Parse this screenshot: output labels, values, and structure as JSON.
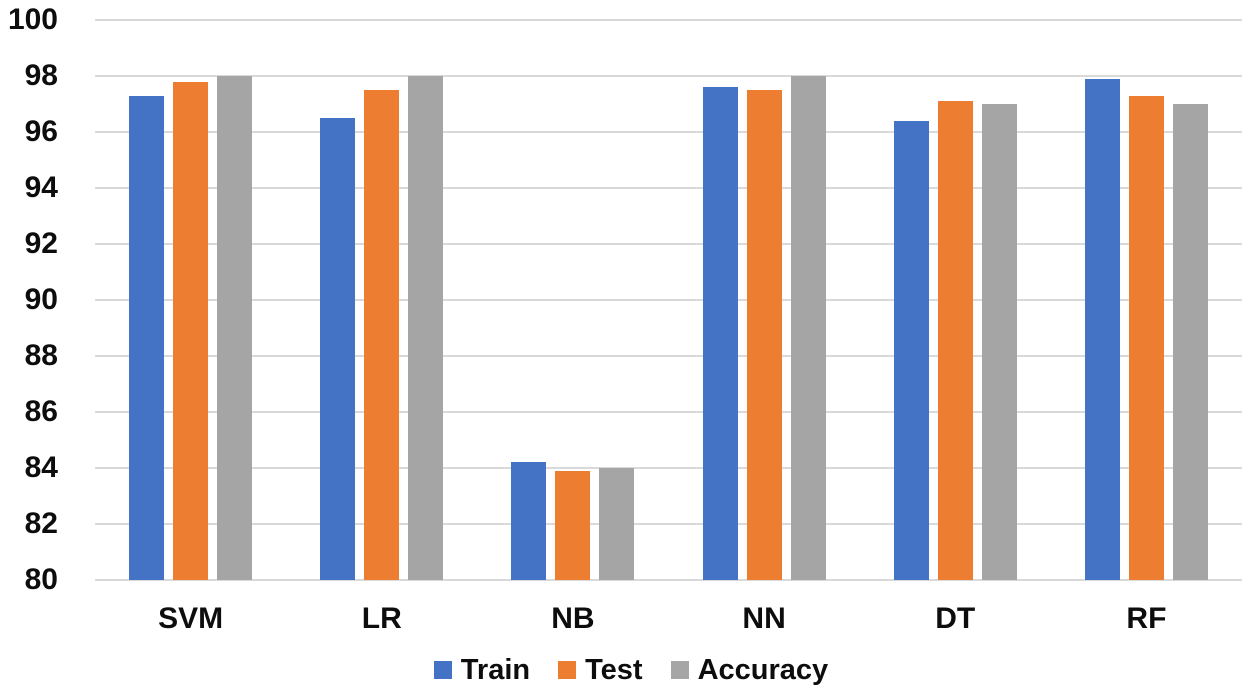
{
  "chart_data": {
    "type": "bar",
    "title": "",
    "xlabel": "",
    "ylabel": "",
    "categories": [
      "SVM",
      "LR",
      "NB",
      "NN",
      "DT",
      "RF"
    ],
    "series": [
      {
        "name": "Train",
        "color": "#4472C4",
        "values": [
          97.3,
          96.5,
          84.2,
          97.6,
          96.4,
          97.9
        ]
      },
      {
        "name": "Test",
        "color": "#ED7D31",
        "values": [
          97.8,
          97.5,
          83.9,
          97.5,
          97.1,
          97.3
        ]
      },
      {
        "name": "Accuracy",
        "color": "#A5A5A5",
        "values": [
          98,
          98,
          84,
          98,
          97,
          97
        ]
      }
    ],
    "ylim": [
      80,
      100
    ],
    "yticks": [
      80,
      82,
      84,
      86,
      88,
      90,
      92,
      94,
      96,
      98,
      100
    ],
    "grid": true,
    "legend_position": "bottom"
  },
  "colors": {
    "train": "#4472C4",
    "test": "#ED7D31",
    "accuracy": "#A5A5A5",
    "gridline": "#D9D9D9",
    "text": "#0d0d0d",
    "background": "#FFFFFF"
  }
}
